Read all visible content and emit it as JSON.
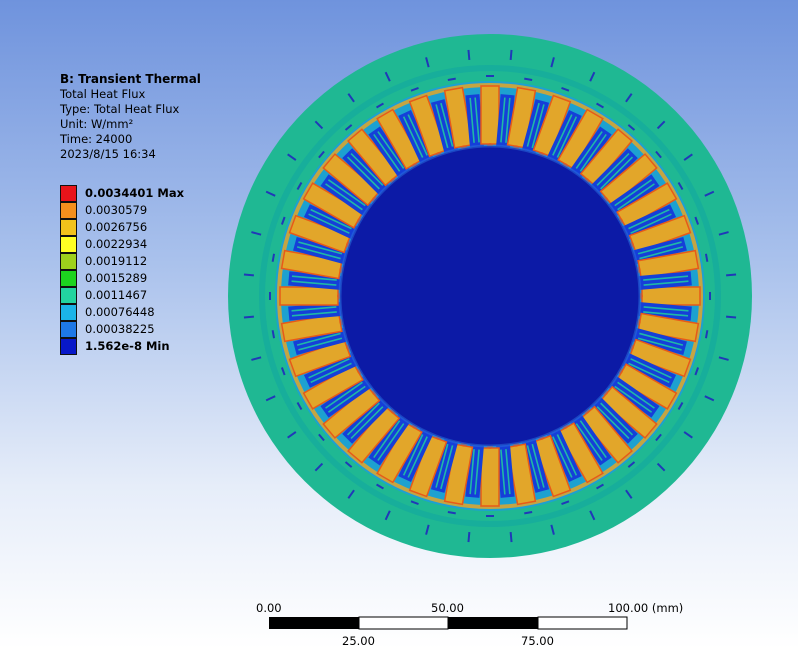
{
  "info": {
    "title": "B: Transient Thermal",
    "line1": "Total Heat Flux",
    "line2": "Type: Total Heat Flux",
    "line3": "Unit: W/mm²",
    "line4": "Time: 24000",
    "line5": "2023/8/15 16:34"
  },
  "legend": [
    {
      "label": "0.0034401 Max",
      "color": "#e8141a",
      "bold": true
    },
    {
      "label": "0.0030579",
      "color": "#f5901d",
      "bold": false
    },
    {
      "label": "0.0026756",
      "color": "#f2c21b",
      "bold": false
    },
    {
      "label": "0.0022934",
      "color": "#ffff24",
      "bold": false
    },
    {
      "label": "0.0019112",
      "color": "#9ed11c",
      "bold": false
    },
    {
      "label": "0.0015289",
      "color": "#1dd41f",
      "bold": false
    },
    {
      "label": "0.0011467",
      "color": "#22d4a0",
      "bold": false
    },
    {
      "label": "0.00076448",
      "color": "#1bb4e8",
      "bold": false
    },
    {
      "label": "0.00038225",
      "color": "#1e78e6",
      "bold": false
    },
    {
      "label": "1.562e-8 Min",
      "color": "#0818c8",
      "bold": true
    }
  ],
  "scale": {
    "top_labels": [
      "0.00",
      "50.00",
      "100.00 (mm)"
    ],
    "bottom_labels": [
      "25.00",
      "75.00"
    ]
  },
  "model": {
    "slot_count": 36,
    "colors": {
      "outer_yoke": "#1fb893",
      "yoke_dark": "#12a6a0",
      "slot_ring": "#1da1d0",
      "tooth": "#e2a62a",
      "tooth_edge": "#e85a18",
      "winding": "#153fd8",
      "winding_stripe": "#1fb8a8",
      "rotor": "#0c1aa6",
      "pin": "#2038b8"
    }
  }
}
